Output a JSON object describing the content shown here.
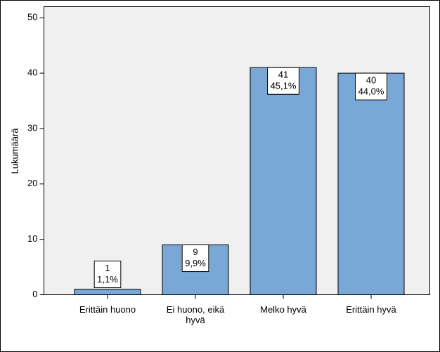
{
  "chart_data": {
    "type": "bar",
    "y_label": "Lukumäärä",
    "categories": [
      "Erittäin huono",
      "Ei huono, eikä hyvä",
      "Melko hyvä",
      "Erittäin hyvä"
    ],
    "values": [
      1,
      9,
      41,
      40
    ],
    "percentages": [
      1.1,
      9.9,
      45.1,
      44.0
    ],
    "percentage_labels": [
      "1,1%",
      "9,9%",
      "45,1%",
      "44,0%"
    ],
    "color": "#79a7d6",
    "ylim": [
      0,
      52
    ],
    "yticks": [
      0,
      10,
      20,
      30,
      40,
      50
    ]
  }
}
